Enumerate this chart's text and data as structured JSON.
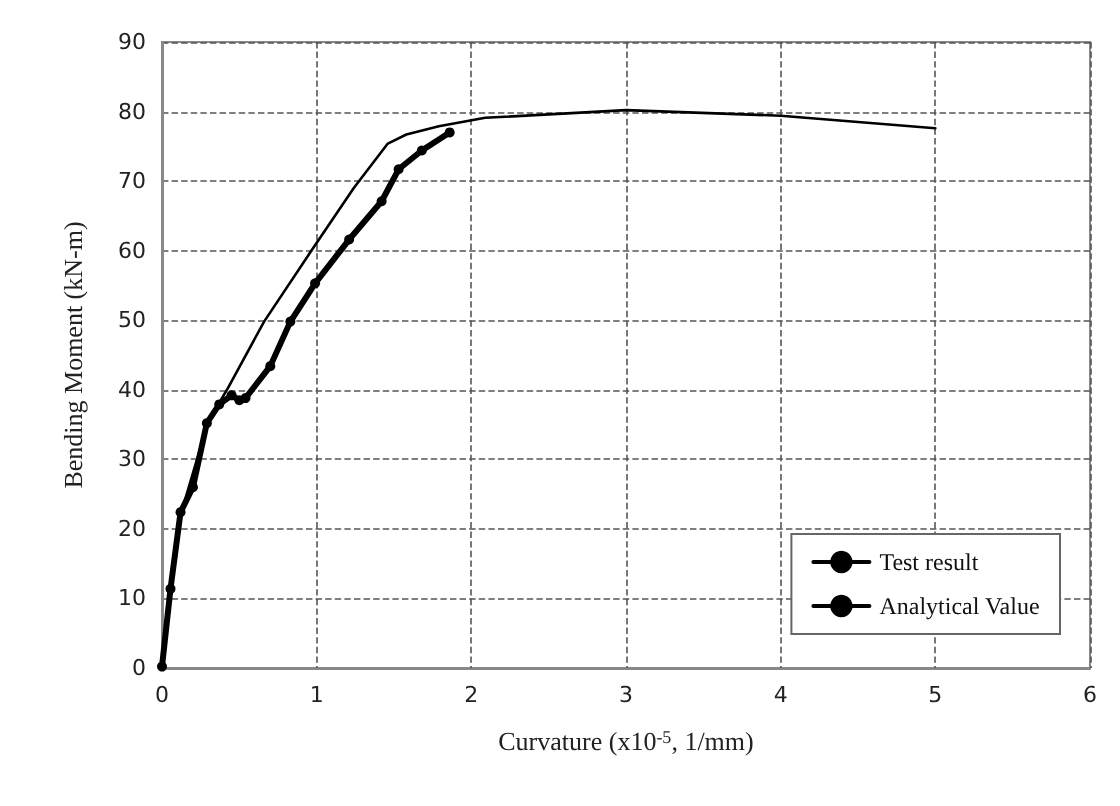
{
  "chart_data": {
    "type": "line",
    "xlabel": "Curvature (x10$^{-5}$, 1/mm)",
    "ylabel": "Bending Moment (kN-m)",
    "xlim": [
      0,
      6
    ],
    "xticks": [
      0,
      1,
      2,
      3,
      4,
      5,
      6
    ],
    "ylim": [
      0,
      90
    ],
    "yticks": [
      0,
      10,
      20,
      30,
      40,
      50,
      60,
      70,
      80,
      90
    ],
    "grid": true,
    "legend": "bottom right",
    "series": [
      {
        "name": "Test result",
        "color": "#000000",
        "marker": "circle",
        "x": [
          0,
          0.055,
          0.12,
          0.2,
          0.29,
          0.37,
          0.45,
          0.5,
          0.54,
          0.7,
          0.83,
          0.99,
          1.21,
          1.42,
          1.53,
          1.68,
          1.86
        ],
        "values": [
          0.2,
          11.4,
          22.4,
          26,
          35.2,
          37.9,
          39.2,
          38.5,
          38.8,
          43.4,
          49.8,
          55.3,
          61.6,
          67.1,
          71.7,
          74.4,
          77
        ]
      },
      {
        "name": "Analytical Value",
        "color": "#000000",
        "marker": "none",
        "x": [
          0,
          0.05,
          0.12,
          0.2,
          0.3,
          0.42,
          0.66,
          0.96,
          1.24,
          1.46,
          1.58,
          1.79,
          2.09,
          3,
          4,
          5
        ],
        "values": [
          0,
          10,
          22,
          28,
          35.5,
          40,
          49.8,
          59.8,
          69,
          75.4,
          76.7,
          77.9,
          79.1,
          80.2,
          79.4,
          77.6
        ]
      }
    ]
  }
}
